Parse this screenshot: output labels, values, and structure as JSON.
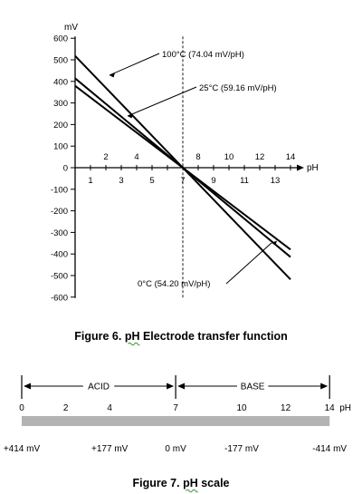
{
  "figure6": {
    "caption_prefix": "Figure 6. ",
    "caption_ph": "pH",
    "caption_rest": " Electrode transfer function",
    "chart_data": {
      "type": "line",
      "y_unit_label": "mV",
      "x_unit_label": "pH",
      "ylim": [
        -600,
        600
      ],
      "xlim": [
        0,
        14
      ],
      "y_ticks": [
        600,
        500,
        400,
        300,
        200,
        100,
        0,
        -100,
        -200,
        -300,
        -400,
        -500,
        -600
      ],
      "x_ticks_upper": [
        2,
        4,
        8,
        10,
        12,
        14
      ],
      "x_ticks_lower": [
        1,
        3,
        5,
        7,
        9,
        11,
        13
      ],
      "isopotential_ph": 7,
      "series": [
        {
          "name": "100°C (74.04 mV/pH)",
          "x": [
            0,
            14
          ],
          "values": [
            518.28,
            -518.28
          ]
        },
        {
          "name": "25°C (59.16 mV/pH)",
          "x": [
            0,
            14
          ],
          "values": [
            414.12,
            -414.12
          ]
        },
        {
          "name": "0°C (54.20 mV/pH)",
          "x": [
            0,
            14
          ],
          "values": [
            379.4,
            -379.4
          ]
        }
      ]
    }
  },
  "figure7": {
    "caption_prefix": "Figure 7. ",
    "caption_ph": "pH",
    "caption_rest": " scale",
    "acid_label": "ACID",
    "base_label": "BASE",
    "unit_label": "pH",
    "ph_ticks": [
      {
        "ph": 0,
        "label": "0"
      },
      {
        "ph": 2,
        "label": "2"
      },
      {
        "ph": 4,
        "label": "4"
      },
      {
        "ph": 7,
        "label": "7"
      },
      {
        "ph": 10,
        "label": "10"
      },
      {
        "ph": 12,
        "label": "12"
      },
      {
        "ph": 14,
        "label": "14"
      }
    ],
    "mv_labels": [
      {
        "ph": 0,
        "label": "+414 mV"
      },
      {
        "ph": 4,
        "label": "+177 mV"
      },
      {
        "ph": 7,
        "label": "0 mV"
      },
      {
        "ph": 10,
        "label": "-177 mV"
      },
      {
        "ph": 14,
        "label": "-414 mV"
      }
    ],
    "bar_color": "#b3b3b3"
  }
}
